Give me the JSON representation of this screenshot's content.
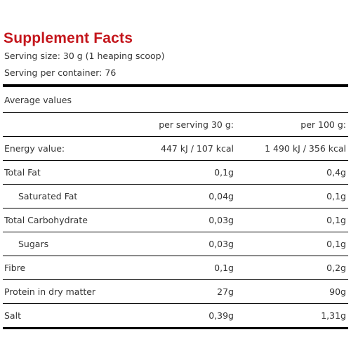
{
  "title": "Supplement Facts",
  "serving_size": "Serving size: 30 g (1 heaping scoop)",
  "serving_per_container": "Serving per container: 76",
  "average_values_label": "Average values",
  "columns": {
    "per_serving": "per serving 30 g:",
    "per_100g": "per 100 g:"
  },
  "rows": [
    {
      "label": "Energy value:",
      "per_serving": "447 kJ / 107 kcal",
      "per_100g": "1 490 kJ / 356 kcal",
      "indent": false
    },
    {
      "label": "Total Fat",
      "per_serving": "0,1g",
      "per_100g": "0,4g",
      "indent": false
    },
    {
      "label": "Saturated Fat",
      "per_serving": "0,04g",
      "per_100g": "0,1g",
      "indent": true
    },
    {
      "label": "Total Carbohydrate",
      "per_serving": "0,03g",
      "per_100g": "0,1g",
      "indent": false
    },
    {
      "label": "Sugars",
      "per_serving": "0,03g",
      "per_100g": "0,1g",
      "indent": true
    },
    {
      "label": "Fibre",
      "per_serving": "0,1g",
      "per_100g": "0,2g",
      "indent": false
    },
    {
      "label": "Protein in dry matter",
      "per_serving": "27g",
      "per_100g": "90g",
      "indent": false
    },
    {
      "label": "Salt",
      "per_serving": "0,39g",
      "per_100g": "1,31g",
      "indent": false
    }
  ],
  "colors": {
    "title": "#c4161c",
    "text": "#333333",
    "rule": "#000000"
  }
}
